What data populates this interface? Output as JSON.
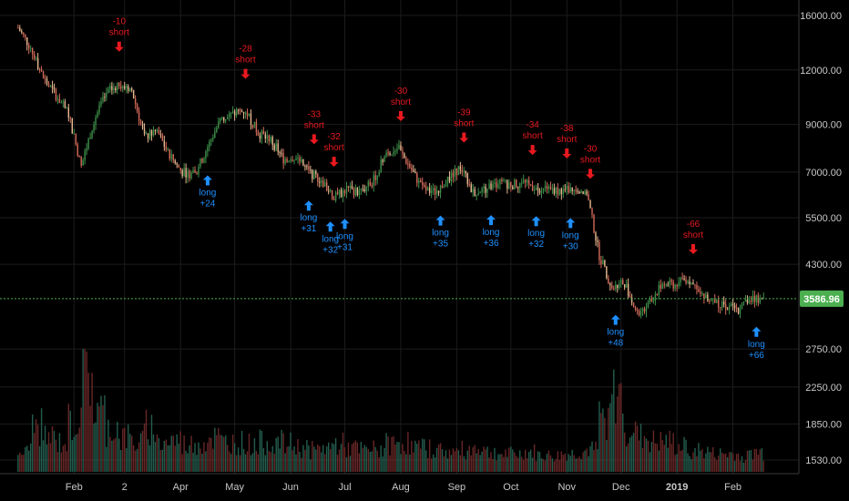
{
  "chart_data": {
    "type": "candlestick",
    "x_tick_labels": [
      "Feb",
      "2",
      "Apr",
      "May",
      "Jun",
      "Jul",
      "Aug",
      "Sep",
      "Oct",
      "Nov",
      "Dec",
      "2019",
      "Feb"
    ],
    "y_tick_labels": [
      "16000.00",
      "12000.00",
      "9000.00",
      "7000.00",
      "5500.00",
      "4300.00",
      "3586.96",
      "2750.00",
      "2250.00",
      "1850.00",
      "1530.00"
    ],
    "current_price": "3586.96",
    "price_scale": "log",
    "ylim": [
      1530,
      16000
    ],
    "grid": true,
    "colors": {
      "up": "#3d8f4a",
      "down": "#d46a5a",
      "body_mid": "#e8b890",
      "long_signal": "#1e90ff",
      "short_signal": "#e8191f",
      "current_price_line": "#4caf50",
      "volume_up": "#2a6d5c",
      "volume_down": "#7a2e2e"
    },
    "price_path": [
      {
        "date": "2018-01-01",
        "price": 15000
      },
      {
        "date": "2018-01-08",
        "price": 13500
      },
      {
        "date": "2018-01-15",
        "price": 11500
      },
      {
        "date": "2018-01-22",
        "price": 10500
      },
      {
        "date": "2018-01-29",
        "price": 9500
      },
      {
        "date": "2018-02-05",
        "price": 7200
      },
      {
        "date": "2018-02-12",
        "price": 9200
      },
      {
        "date": "2018-02-19",
        "price": 10600
      },
      {
        "date": "2018-02-26",
        "price": 11200
      },
      {
        "date": "2018-03-05",
        "price": 10800
      },
      {
        "date": "2018-03-12",
        "price": 8400
      },
      {
        "date": "2018-03-19",
        "price": 8700
      },
      {
        "date": "2018-03-26",
        "price": 7600
      },
      {
        "date": "2018-04-02",
        "price": 7000
      },
      {
        "date": "2018-04-09",
        "price": 6900
      },
      {
        "date": "2018-04-16",
        "price": 8000
      },
      {
        "date": "2018-04-23",
        "price": 9200
      },
      {
        "date": "2018-04-30",
        "price": 9500
      },
      {
        "date": "2018-05-07",
        "price": 9700
      },
      {
        "date": "2018-05-14",
        "price": 8600
      },
      {
        "date": "2018-05-21",
        "price": 8300
      },
      {
        "date": "2018-05-28",
        "price": 7500
      },
      {
        "date": "2018-06-04",
        "price": 7600
      },
      {
        "date": "2018-06-11",
        "price": 7000
      },
      {
        "date": "2018-06-18",
        "price": 6700
      },
      {
        "date": "2018-06-25",
        "price": 6100
      },
      {
        "date": "2018-07-02",
        "price": 6400
      },
      {
        "date": "2018-07-09",
        "price": 6300
      },
      {
        "date": "2018-07-16",
        "price": 6600
      },
      {
        "date": "2018-07-23",
        "price": 7600
      },
      {
        "date": "2018-07-30",
        "price": 8000
      },
      {
        "date": "2018-08-06",
        "price": 7200
      },
      {
        "date": "2018-08-13",
        "price": 6400
      },
      {
        "date": "2018-08-20",
        "price": 6300
      },
      {
        "date": "2018-08-27",
        "price": 6700
      },
      {
        "date": "2018-09-03",
        "price": 7200
      },
      {
        "date": "2018-09-10",
        "price": 6300
      },
      {
        "date": "2018-09-17",
        "price": 6400
      },
      {
        "date": "2018-09-24",
        "price": 6600
      },
      {
        "date": "2018-10-01",
        "price": 6550
      },
      {
        "date": "2018-10-08",
        "price": 6600
      },
      {
        "date": "2018-10-15",
        "price": 6450
      },
      {
        "date": "2018-10-22",
        "price": 6400
      },
      {
        "date": "2018-10-29",
        "price": 6350
      },
      {
        "date": "2018-11-05",
        "price": 6400
      },
      {
        "date": "2018-11-12",
        "price": 6300
      },
      {
        "date": "2018-11-19",
        "price": 4500
      },
      {
        "date": "2018-11-26",
        "price": 3800
      },
      {
        "date": "2018-12-03",
        "price": 3900
      },
      {
        "date": "2018-12-10",
        "price": 3300
      },
      {
        "date": "2018-12-17",
        "price": 3500
      },
      {
        "date": "2018-12-24",
        "price": 3900
      },
      {
        "date": "2018-12-31",
        "price": 3850
      },
      {
        "date": "2019-01-07",
        "price": 4000
      },
      {
        "date": "2019-01-14",
        "price": 3650
      },
      {
        "date": "2019-01-21",
        "price": 3550
      },
      {
        "date": "2019-01-28",
        "price": 3450
      },
      {
        "date": "2019-02-04",
        "price": 3400
      },
      {
        "date": "2019-02-11",
        "price": 3600
      },
      {
        "date": "2019-02-18",
        "price": 3587
      }
    ],
    "volume_relative": [
      0.2,
      0.45,
      0.35,
      0.3,
      0.5,
      1.0,
      0.6,
      0.45,
      0.35,
      0.3,
      0.45,
      0.3,
      0.32,
      0.28,
      0.3,
      0.35,
      0.3,
      0.3,
      0.28,
      0.3,
      0.3,
      0.28,
      0.25,
      0.22,
      0.25,
      0.28,
      0.24,
      0.22,
      0.23,
      0.28,
      0.3,
      0.25,
      0.24,
      0.22,
      0.2,
      0.22,
      0.25,
      0.2,
      0.18,
      0.18,
      0.2,
      0.17,
      0.16,
      0.18,
      0.2,
      0.22,
      0.55,
      0.75,
      0.45,
      0.35,
      0.3,
      0.3,
      0.25,
      0.22,
      0.2,
      0.18,
      0.18,
      0.16,
      0.2,
      0.18
    ],
    "signals": [
      {
        "date": "2018-02-26",
        "type": "short",
        "label": "short",
        "value": "-10"
      },
      {
        "date": "2018-04-16",
        "type": "long",
        "label": "long",
        "value": "+24"
      },
      {
        "date": "2018-05-07",
        "type": "short",
        "label": "short",
        "value": "-28"
      },
      {
        "date": "2018-06-11",
        "type": "long",
        "label": "long",
        "value": "+31"
      },
      {
        "date": "2018-06-14",
        "type": "short",
        "label": "short",
        "value": "-33"
      },
      {
        "date": "2018-06-23",
        "type": "long",
        "label": "long",
        "value": "+32"
      },
      {
        "date": "2018-06-25",
        "type": "short",
        "label": "short",
        "value": "-32"
      },
      {
        "date": "2018-07-01",
        "type": "long",
        "label": "long",
        "value": "+31"
      },
      {
        "date": "2018-08-01",
        "type": "short",
        "label": "short",
        "value": "-30"
      },
      {
        "date": "2018-08-23",
        "type": "long",
        "label": "long",
        "value": "+35"
      },
      {
        "date": "2018-09-05",
        "type": "short",
        "label": "short",
        "value": "-39"
      },
      {
        "date": "2018-09-20",
        "type": "long",
        "label": "long",
        "value": "+36"
      },
      {
        "date": "2018-10-13",
        "type": "short",
        "label": "short",
        "value": "-34"
      },
      {
        "date": "2018-10-15",
        "type": "long",
        "label": "long",
        "value": "+32"
      },
      {
        "date": "2018-11-01",
        "type": "short",
        "label": "short",
        "value": "-38"
      },
      {
        "date": "2018-11-03",
        "type": "long",
        "label": "long",
        "value": "+30"
      },
      {
        "date": "2018-11-14",
        "type": "short",
        "label": "short",
        "value": "-30"
      },
      {
        "date": "2018-11-28",
        "type": "long",
        "label": "long",
        "value": "+48"
      },
      {
        "date": "2019-01-10",
        "type": "short",
        "label": "short",
        "value": "-66"
      },
      {
        "date": "2019-02-14",
        "type": "long",
        "label": "long",
        "value": "+66"
      }
    ]
  }
}
